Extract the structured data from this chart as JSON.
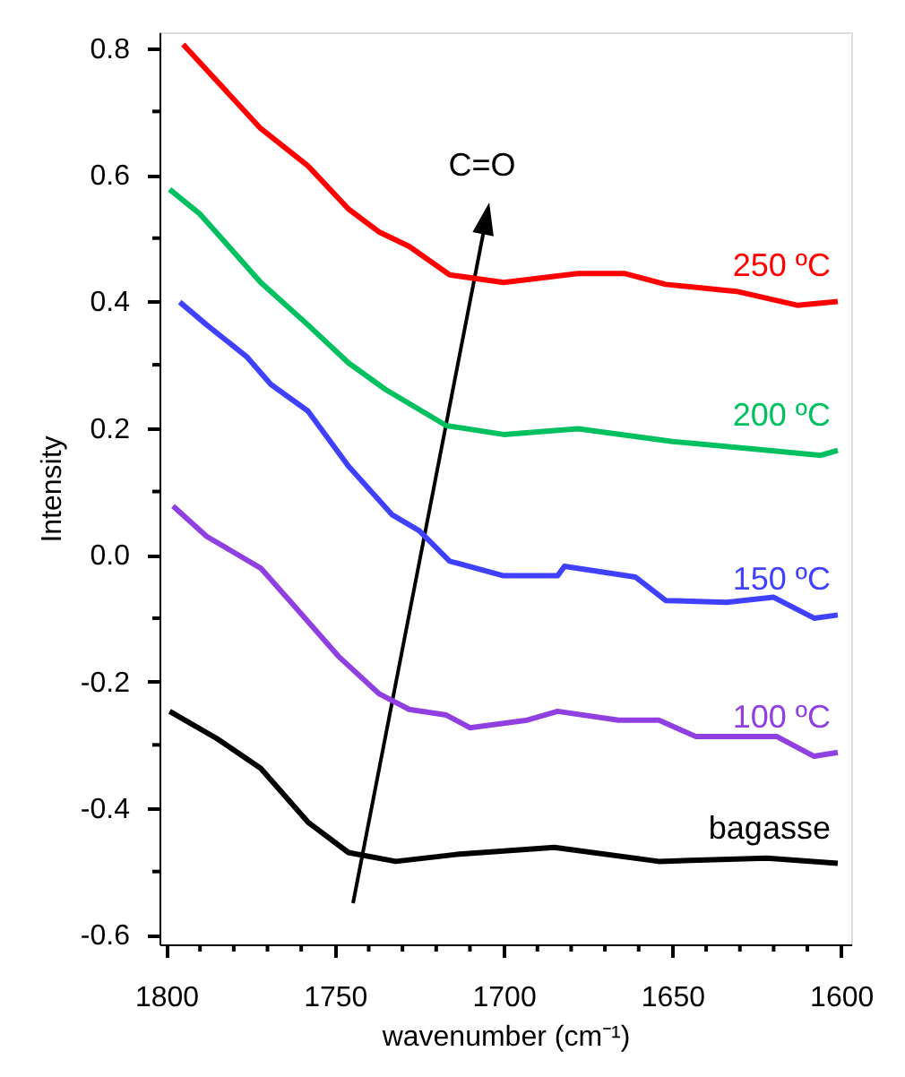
{
  "chart_data": {
    "type": "line",
    "xlabel": "wavenumber (cm⁻¹)",
    "ylabel": "Intensity",
    "xlim": [
      1802,
      1597
    ],
    "ylim": [
      -0.615,
      0.825
    ],
    "xticks": [
      1800,
      {
        "value": 1790,
        "label": null
      },
      {
        "value": 1780,
        "label": null
      },
      {
        "value": 1770,
        "label": null
      },
      {
        "value": 1760,
        "label": null
      },
      1750,
      {
        "value": 1740,
        "label": null
      },
      {
        "value": 1730,
        "label": null
      },
      {
        "value": 1720,
        "label": null
      },
      {
        "value": 1710,
        "label": null
      },
      1700,
      {
        "value": 1690,
        "label": null
      },
      {
        "value": 1680,
        "label": null
      },
      {
        "value": 1670,
        "label": null
      },
      {
        "value": 1660,
        "label": null
      },
      1650,
      {
        "value": 1640,
        "label": null
      },
      {
        "value": 1630,
        "label": null
      },
      {
        "value": 1620,
        "label": null
      },
      {
        "value": 1610,
        "label": null
      },
      1600
    ],
    "yticks": [
      -0.6,
      {
        "value": -0.5,
        "label": null
      },
      -0.4,
      {
        "value": -0.3,
        "label": null
      },
      -0.2,
      {
        "value": -0.1,
        "label": null
      },
      {
        "value": 0,
        "label": "0.0"
      },
      {
        "value": 0.1,
        "label": null
      },
      0.2,
      {
        "value": 0.3,
        "label": null
      },
      0.4,
      {
        "value": 0.5,
        "label": null
      },
      0.6,
      {
        "value": 0.7,
        "label": null
      },
      0.8
    ],
    "grid": false,
    "legend": false,
    "marker": "none",
    "line_style": "solid",
    "annotations": [
      "C=O"
    ],
    "series": [
      {
        "name": "250 ºC",
        "color": "#ff0000",
        "x": [
          1795,
          1772,
          1758,
          1746,
          1737,
          1728,
          1716,
          1700,
          1678,
          1664,
          1652,
          1631,
          1613,
          1601
        ],
        "values": [
          0.806,
          0.673,
          0.614,
          0.546,
          0.51,
          0.487,
          0.442,
          0.43,
          0.444,
          0.444,
          0.427,
          0.416,
          0.394,
          0.4
        ]
      },
      {
        "name": "200 ºC",
        "color": "#00c060",
        "x": [
          1799,
          1790,
          1772,
          1758,
          1746,
          1735,
          1717,
          1700,
          1678,
          1650,
          1622,
          1606,
          1601
        ],
        "values": [
          0.577,
          0.538,
          0.43,
          0.363,
          0.303,
          0.261,
          0.204,
          0.19,
          0.199,
          0.179,
          0.165,
          0.157,
          0.165
        ]
      },
      {
        "name": "150 ºC",
        "color": "#4040ff",
        "x": [
          1796,
          1788,
          1776,
          1769,
          1758,
          1746,
          1733,
          1725,
          1716,
          1700,
          1684,
          1682,
          1661,
          1652,
          1634,
          1620,
          1608,
          1601
        ],
        "values": [
          0.399,
          0.363,
          0.312,
          0.269,
          0.227,
          0.14,
          0.063,
          0.038,
          -0.01,
          -0.033,
          -0.033,
          -0.018,
          -0.035,
          -0.072,
          -0.075,
          -0.067,
          -0.1,
          -0.095
        ]
      },
      {
        "name": "100 ºC",
        "color": "#9040e0",
        "x": [
          1798,
          1788,
          1772,
          1763,
          1749,
          1737,
          1728,
          1717,
          1710,
          1693,
          1684,
          1666,
          1654,
          1643,
          1619,
          1608,
          1601
        ],
        "values": [
          0.077,
          0.029,
          -0.021,
          -0.075,
          -0.16,
          -0.219,
          -0.244,
          -0.253,
          -0.273,
          -0.261,
          -0.247,
          -0.261,
          -0.261,
          -0.287,
          -0.287,
          -0.318,
          -0.312
        ]
      },
      {
        "name": "bagasse",
        "color": "#000000",
        "x": [
          1799,
          1785,
          1772,
          1758,
          1746,
          1732,
          1714,
          1685,
          1654,
          1622,
          1601
        ],
        "values": [
          -0.247,
          -0.29,
          -0.337,
          -0.422,
          -0.47,
          -0.484,
          -0.473,
          -0.462,
          -0.484,
          -0.479,
          -0.487
        ]
      }
    ]
  }
}
